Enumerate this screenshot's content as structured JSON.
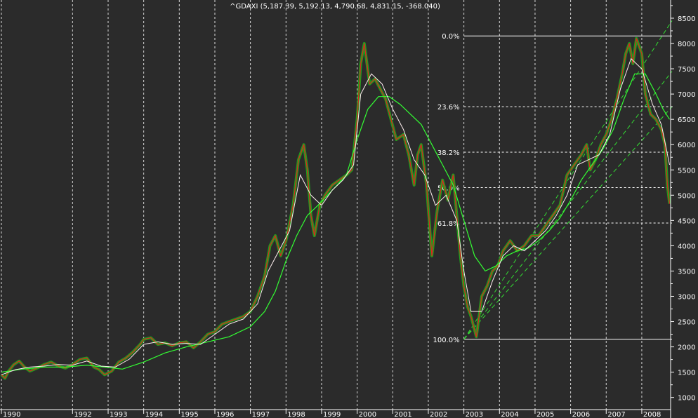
{
  "chart_data": {
    "type": "line",
    "title": "^GDAXI (5,187.39, 5,192.13, 4,790.68, 4,831.15, -368.040)",
    "x_tick_labels": [
      "1990",
      "1992",
      "1993",
      "1994",
      "1995",
      "1996",
      "1997",
      "1998",
      "1999",
      "2000",
      "2001",
      "2002",
      "2003",
      "2004",
      "2005",
      "2006",
      "2007",
      "2008"
    ],
    "x_tick_years": [
      1990.0,
      1992.0,
      1993.0,
      1994.0,
      1995.0,
      1996.0,
      1997.0,
      1998.0,
      1999.0,
      2000.0,
      2001.0,
      2002.0,
      2003.0,
      2004.0,
      2005.0,
      2006.0,
      2007.0,
      2008.0
    ],
    "xlim": [
      1990.0,
      2008.85
    ],
    "y_ticks": [
      1000,
      1500,
      2000,
      2500,
      3000,
      3500,
      4000,
      4500,
      5000,
      5500,
      6000,
      6500,
      7000,
      7500,
      8000,
      8500
    ],
    "ylim": [
      760,
      8860
    ],
    "grid": "vertical dashed",
    "colors": {
      "background": "#2b2b2b",
      "price": "#1e9e1e",
      "price_down": "#e02020",
      "ma_short": "#fff0f0",
      "ma_long": "#33ff33",
      "channel": "#33dd33",
      "fib_line": "#ffffff",
      "text": "#ffffff"
    },
    "series": [
      {
        "name": "",
        "role": "price",
        "x": [
          1990.0,
          1990.1,
          1990.2,
          1990.35,
          1990.5,
          1990.65,
          1990.8,
          1991.0,
          1991.2,
          1991.4,
          1991.6,
          1991.8,
          1992.0,
          1992.2,
          1992.4,
          1992.6,
          1992.75,
          1992.9,
          1993.1,
          1993.3,
          1993.5,
          1993.7,
          1993.9,
          1994.0,
          1994.2,
          1994.4,
          1994.6,
          1994.8,
          1995.0,
          1995.2,
          1995.4,
          1995.6,
          1995.8,
          1996.0,
          1996.2,
          1996.4,
          1996.6,
          1996.8,
          1997.0,
          1997.2,
          1997.4,
          1997.55,
          1997.7,
          1997.85,
          1998.0,
          1998.2,
          1998.35,
          1998.5,
          1998.6,
          1998.7,
          1998.8,
          1998.95,
          1999.1,
          1999.3,
          1999.5,
          1999.7,
          1999.85,
          2000.0,
          2000.1,
          2000.2,
          2000.35,
          2000.5,
          2000.65,
          2000.8,
          2000.95,
          2001.1,
          2001.3,
          2001.45,
          2001.6,
          2001.7,
          2001.8,
          2001.95,
          2002.1,
          2002.25,
          2002.4,
          2002.55,
          2002.7,
          2002.8,
          2002.9,
          2003.0,
          2003.1,
          2003.2,
          2003.35,
          2003.5,
          2003.65,
          2003.8,
          2003.95,
          2004.1,
          2004.3,
          2004.5,
          2004.7,
          2004.9,
          2005.1,
          2005.3,
          2005.5,
          2005.7,
          2005.9,
          2006.1,
          2006.3,
          2006.45,
          2006.55,
          2006.7,
          2006.85,
          2007.0,
          2007.15,
          2007.3,
          2007.45,
          2007.55,
          2007.65,
          2007.75,
          2007.85,
          2008.0,
          2008.1,
          2008.25,
          2008.4,
          2008.55,
          2008.65,
          2008.72,
          2008.78
        ],
        "values": [
          1450,
          1380,
          1520,
          1650,
          1720,
          1600,
          1520,
          1580,
          1650,
          1700,
          1620,
          1580,
          1650,
          1750,
          1780,
          1600,
          1550,
          1450,
          1520,
          1700,
          1780,
          1900,
          2050,
          2150,
          2180,
          2050,
          2080,
          2020,
          2080,
          2100,
          1980,
          2100,
          2250,
          2300,
          2450,
          2500,
          2550,
          2600,
          2700,
          3000,
          3400,
          4000,
          4200,
          3800,
          4100,
          4800,
          5700,
          6000,
          5500,
          4600,
          4200,
          4800,
          5000,
          5200,
          5300,
          5400,
          5500,
          6500,
          7600,
          8000,
          7200,
          7300,
          7100,
          6900,
          6500,
          6100,
          6200,
          5800,
          5200,
          5800,
          6000,
          5200,
          3800,
          4700,
          5300,
          4900,
          5400,
          4600,
          3800,
          3200,
          2800,
          2600,
          2200,
          3000,
          3200,
          3500,
          3600,
          3900,
          4100,
          3900,
          4000,
          4200,
          4200,
          4400,
          4600,
          4800,
          5400,
          5600,
          5800,
          6000,
          5500,
          5700,
          6000,
          6200,
          6500,
          6900,
          7400,
          7800,
          8000,
          7600,
          8100,
          7800,
          7000,
          6600,
          6500,
          6300,
          6000,
          5200,
          4831
        ]
      },
      {
        "name": "",
        "role": "ma_long",
        "x": [
          1990.0,
          1990.6,
          1991.2,
          1991.8,
          1992.4,
          1992.9,
          1993.4,
          1994.0,
          1994.6,
          1995.2,
          1995.8,
          1996.4,
          1997.0,
          1997.4,
          1997.7,
          1998.0,
          1998.3,
          1998.6,
          1998.9,
          1999.3,
          1999.7,
          2000.0,
          2000.3,
          2000.6,
          2000.9,
          2001.2,
          2001.5,
          2001.8,
          2002.1,
          2002.4,
          2002.7,
          2003.0,
          2003.3,
          2003.6,
          2003.9,
          2004.2,
          2004.5,
          2004.8,
          2005.1,
          2005.4,
          2005.7,
          2006.0,
          2006.3,
          2006.6,
          2006.9,
          2007.2,
          2007.5,
          2007.8,
          2008.1,
          2008.4,
          2008.6,
          2008.78
        ],
        "values": [
          1500,
          1560,
          1600,
          1600,
          1640,
          1600,
          1560,
          1700,
          1880,
          2000,
          2100,
          2200,
          2400,
          2700,
          3100,
          3700,
          4200,
          4600,
          4800,
          5100,
          5400,
          6100,
          6700,
          6950,
          6950,
          6800,
          6600,
          6400,
          6000,
          5600,
          5200,
          4500,
          3800,
          3500,
          3600,
          3800,
          3900,
          3950,
          4100,
          4300,
          4550,
          4900,
          5300,
          5600,
          5900,
          6300,
          6900,
          7400,
          7400,
          7000,
          6700,
          6500
        ]
      },
      {
        "name": "",
        "role": "ma_short",
        "x": [
          1990.0,
          1990.4,
          1990.8,
          1991.2,
          1991.6,
          1992.0,
          1992.4,
          1992.8,
          1993.2,
          1993.6,
          1994.0,
          1994.4,
          1994.8,
          1995.2,
          1995.6,
          1996.0,
          1996.4,
          1996.8,
          1997.2,
          1997.5,
          1997.8,
          1998.1,
          1998.4,
          1998.7,
          1999.0,
          1999.3,
          1999.6,
          1999.9,
          2000.1,
          2000.4,
          2000.7,
          2001.0,
          2001.3,
          2001.6,
          2001.9,
          2002.2,
          2002.5,
          2002.8,
          2003.0,
          2003.2,
          2003.5,
          2003.8,
          2004.1,
          2004.4,
          2004.7,
          2005.0,
          2005.3,
          2005.6,
          2005.9,
          2006.2,
          2006.5,
          2006.8,
          2007.1,
          2007.4,
          2007.7,
          2008.0,
          2008.3,
          2008.55,
          2008.78
        ],
        "values": [
          1450,
          1550,
          1600,
          1620,
          1650,
          1640,
          1720,
          1620,
          1600,
          1760,
          2050,
          2100,
          2050,
          2070,
          2050,
          2250,
          2450,
          2550,
          2850,
          3500,
          3900,
          4300,
          5400,
          5000,
          4800,
          5100,
          5300,
          5600,
          7000,
          7400,
          7200,
          6700,
          6300,
          5700,
          5400,
          4800,
          5000,
          4500,
          3500,
          2700,
          2700,
          3300,
          3800,
          4000,
          3900,
          4100,
          4300,
          4600,
          5000,
          5600,
          5700,
          5800,
          6200,
          7100,
          7700,
          7500,
          6800,
          6400,
          5600
        ]
      }
    ],
    "fibonacci": {
      "levels": [
        {
          "label": "0.0%",
          "value": 8150
        },
        {
          "label": "23.6%",
          "value": 6750
        },
        {
          "label": "38.2%",
          "value": 5850
        },
        {
          "label": "50.0%",
          "value": 5150
        },
        {
          "label": "61.8%",
          "value": 4450
        },
        {
          "label": "100.0%",
          "value": 2150
        }
      ],
      "x_start": 2003.0,
      "x_end": 2008.85
    },
    "channel_lines": [
      {
        "x": [
          2003.0,
          2008.85
        ],
        "values": [
          2150,
          8450
        ]
      },
      {
        "x": [
          2003.0,
          2008.85
        ],
        "values": [
          2150,
          6750
        ]
      },
      {
        "x": [
          2003.0,
          2008.85
        ],
        "values": [
          2150,
          7450
        ]
      }
    ]
  }
}
